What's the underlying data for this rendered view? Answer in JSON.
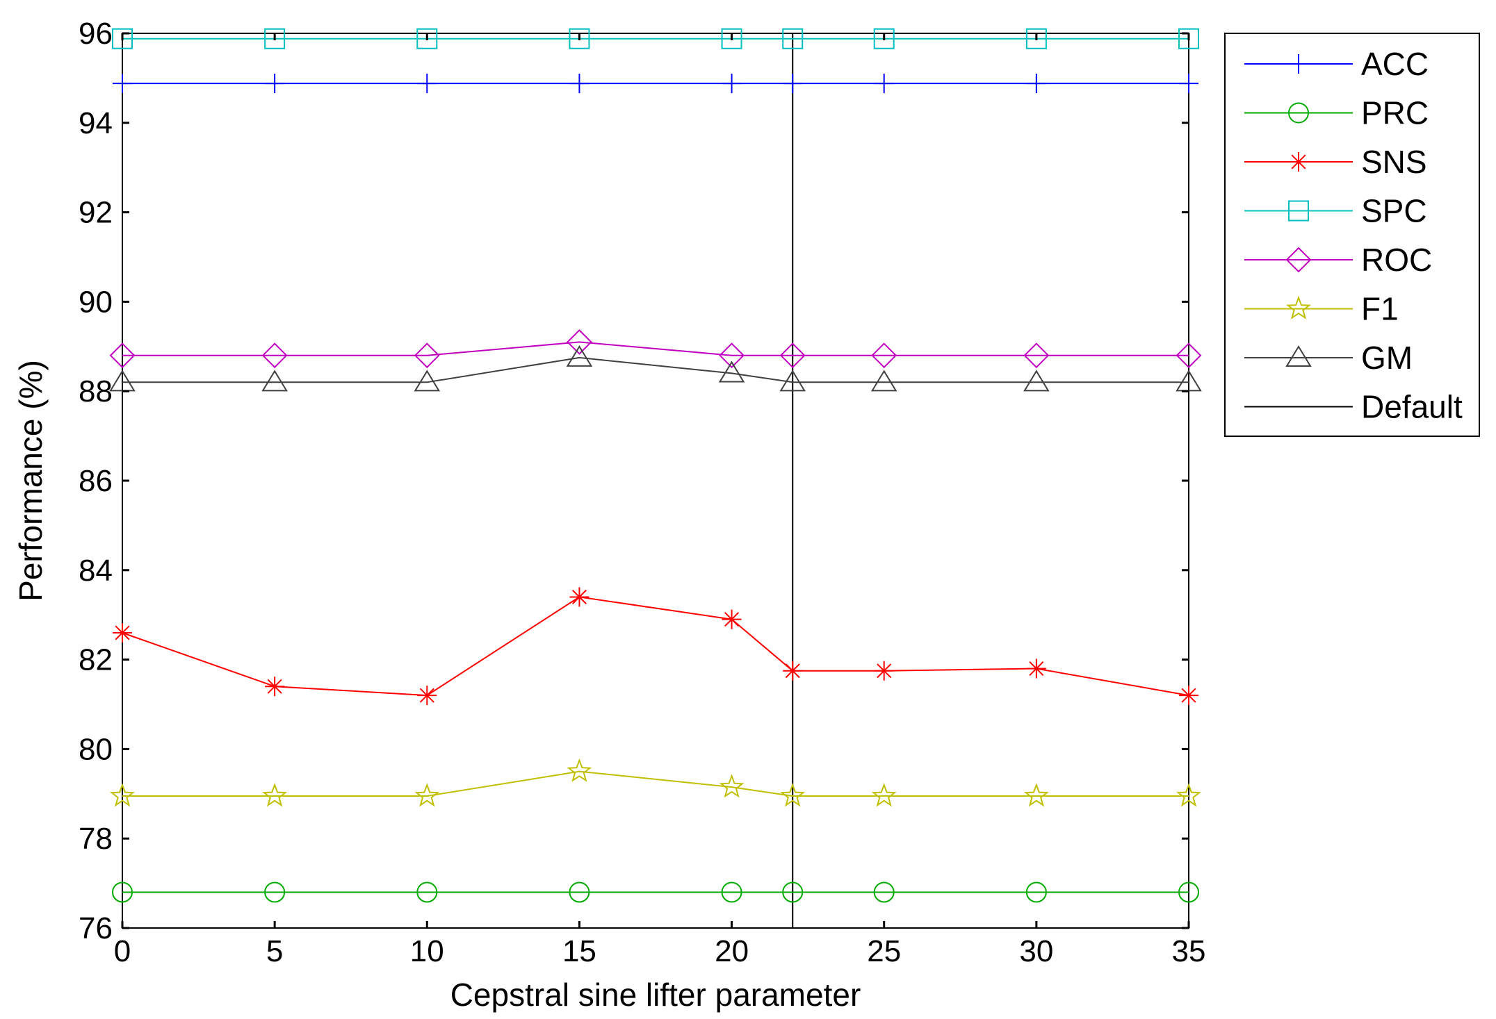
{
  "chart_data": {
    "type": "line",
    "title": "",
    "xlabel": "Cepstral sine lifter parameter",
    "ylabel": "Performance (%)",
    "xlim": [
      0,
      35
    ],
    "ylim": [
      76,
      96
    ],
    "x": [
      0,
      5,
      10,
      15,
      20,
      22,
      25,
      30,
      35
    ],
    "x_ticks": [
      "0",
      "5",
      "10",
      "15",
      "20",
      "25",
      "30",
      "35"
    ],
    "y_ticks": [
      "76",
      "78",
      "80",
      "82",
      "84",
      "86",
      "88",
      "90",
      "92",
      "94",
      "96"
    ],
    "grid": false,
    "legend_position": "outside-right",
    "series": [
      {
        "name": "ACC",
        "color": "#0000ff",
        "marker": "plus",
        "values": [
          94.88,
          94.88,
          94.88,
          94.88,
          94.88,
          94.88,
          94.88,
          94.88,
          94.88
        ]
      },
      {
        "name": "PRC",
        "color": "#00aa00",
        "marker": "circle",
        "values": [
          76.8,
          76.8,
          76.8,
          76.8,
          76.8,
          76.8,
          76.8,
          76.8,
          76.8
        ]
      },
      {
        "name": "SNS",
        "color": "#ff0000",
        "marker": "asterisk",
        "values": [
          82.6,
          81.4,
          81.2,
          83.4,
          82.9,
          81.75,
          81.75,
          81.8,
          81.2
        ]
      },
      {
        "name": "SPC",
        "color": "#00bfbf",
        "marker": "square",
        "values": [
          95.88,
          95.88,
          95.88,
          95.88,
          95.88,
          95.88,
          95.88,
          95.88,
          95.88
        ]
      },
      {
        "name": "ROC",
        "color": "#bf00bf",
        "marker": "diamond",
        "values": [
          88.8,
          88.8,
          88.8,
          89.1,
          88.8,
          88.8,
          88.8,
          88.8,
          88.8
        ]
      },
      {
        "name": "F1",
        "color": "#bfbf00",
        "marker": "star",
        "values": [
          78.95,
          78.95,
          78.95,
          79.5,
          79.15,
          78.95,
          78.95,
          78.95,
          78.95
        ]
      },
      {
        "name": "GM",
        "color": "#404040",
        "marker": "triangle",
        "values": [
          88.2,
          88.2,
          88.2,
          88.75,
          88.4,
          88.2,
          88.2,
          88.2,
          88.2
        ]
      }
    ],
    "default_line": {
      "name": "Default",
      "x": 22,
      "color": "#000000"
    }
  }
}
